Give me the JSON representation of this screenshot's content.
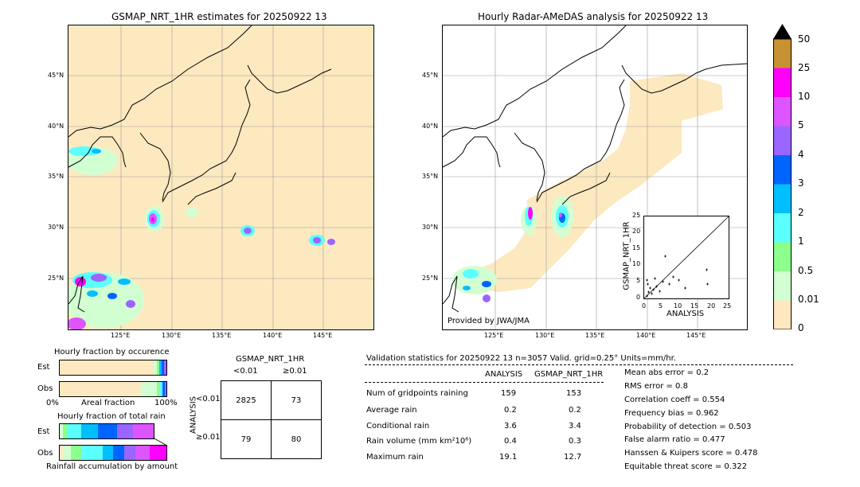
{
  "left_map": {
    "title": "GSMAP_NRT_1HR estimates for 20250922 13",
    "lat_ticks": [
      "45°N",
      "40°N",
      "35°N",
      "30°N",
      "25°N"
    ],
    "lon_ticks": [
      "125°E",
      "130°E",
      "135°E",
      "140°E",
      "145°E"
    ]
  },
  "right_map": {
    "title": "Hourly Radar-AMeDAS analysis for 20250922 13",
    "lat_ticks": [
      "45°N",
      "40°N",
      "35°N",
      "30°N",
      "25°N"
    ],
    "lon_ticks": [
      "125°E",
      "130°E",
      "135°E",
      "140°E",
      "145°E"
    ],
    "credit": "Provided by JWA/JMA"
  },
  "colorbar": {
    "labels": [
      "50",
      "25",
      "10",
      "5",
      "4",
      "3",
      "2",
      "1",
      "0.5",
      "0.01",
      "0"
    ],
    "colors": [
      "#c89232",
      "#ff00ff",
      "#dd55ff",
      "#9a66ff",
      "#0064ff",
      "#00bfff",
      "#5bffff",
      "#8cff8c",
      "#d2ffd2",
      "#ffe8c0"
    ]
  },
  "scatter": {
    "xlabel": "ANALYSIS",
    "ylabel": "GSMAP_NRT_1HR",
    "ticks": [
      "0",
      "5",
      "10",
      "15",
      "20",
      "25"
    ]
  },
  "occurrence": {
    "title": "Hourly fraction by occurence",
    "row_est": "Est",
    "row_obs": "Obs",
    "axis_left": "0%",
    "axis_mid": "Areal fraction",
    "axis_right": "100%"
  },
  "total_rain": {
    "title": "Hourly fraction of total rain",
    "row_est": "Est",
    "row_obs": "Obs",
    "footer": "Rainfall accumulation by amount"
  },
  "contingency": {
    "header": "GSMAP_NRT_1HR",
    "col_lt": "<0.01",
    "col_ge": "≥0.01",
    "row_axis": "ANALYSIS",
    "row_lt": "<0.01",
    "row_ge": "≥0.01",
    "cells": [
      "2825",
      "73",
      "79",
      "80"
    ]
  },
  "validation": {
    "header": "Validation statistics for 20250922 13  n=3057 Valid. grid=0.25° Units=mm/hr.",
    "col_analysis": "ANALYSIS",
    "col_gsmap": "GSMAP_NRT_1HR",
    "rows": [
      {
        "label": "Num of gridpoints raining",
        "analysis": "159",
        "gsmap": "153"
      },
      {
        "label": "Average rain",
        "analysis": "0.2",
        "gsmap": "0.2"
      },
      {
        "label": "Conditional rain",
        "analysis": "3.6",
        "gsmap": "3.4"
      },
      {
        "label": "Rain volume (mm km²10⁶)",
        "analysis": "0.4",
        "gsmap": "0.3"
      },
      {
        "label": "Maximum rain",
        "analysis": "19.1",
        "gsmap": "12.7"
      }
    ],
    "scores": [
      "Mean abs error =    0.2",
      "RMS error =    0.8",
      "Correlation coeff =  0.554",
      "Frequency bias =  0.962",
      "Probability of detection =  0.503",
      "False alarm ratio =  0.477",
      "Hanssen & Kuipers score =  0.478",
      "Equitable threat score =  0.322"
    ]
  }
}
